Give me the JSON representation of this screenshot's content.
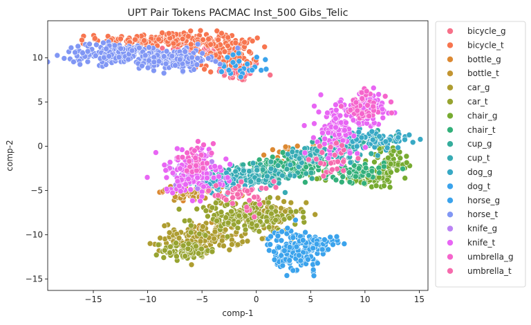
{
  "chart_data": {
    "type": "scatter",
    "title": "UPT Pair Tokens PACMAC Inst_500 Gibs_Telic",
    "xlabel": "comp-1",
    "ylabel": "comp-2",
    "xlim": [
      -19.2,
      15.8
    ],
    "ylim": [
      -16.3,
      14.2
    ],
    "xticks": [
      -15,
      -10,
      -5,
      0,
      5,
      10,
      15
    ],
    "yticks": [
      -15,
      -10,
      -5,
      0,
      5,
      10
    ],
    "grid": false,
    "legend_position": "outside-right",
    "series": [
      {
        "name": "bicycle_g",
        "color": "#f77189",
        "clusters": [
          {
            "x": -1.5,
            "y": 8.5,
            "sx": 1.0,
            "sy": 0.6,
            "n": 60
          },
          {
            "x": -5.0,
            "y": 11.3,
            "sx": 2.0,
            "sy": 0.5,
            "n": 40
          }
        ]
      },
      {
        "name": "bicycle_t",
        "color": "#f7754f",
        "clusters": [
          {
            "x": -8.0,
            "y": 12.0,
            "sx": 3.2,
            "sy": 0.45,
            "n": 200
          },
          {
            "x": -3.0,
            "y": 10.5,
            "sx": 1.6,
            "sy": 0.9,
            "n": 100
          }
        ]
      },
      {
        "name": "bottle_g",
        "color": "#dc8932",
        "clusters": [
          {
            "x": -5.5,
            "y": -5.0,
            "sx": 1.5,
            "sy": 0.5,
            "n": 30
          },
          {
            "x": 3.5,
            "y": -0.7,
            "sx": 1.2,
            "sy": 0.4,
            "n": 20
          }
        ]
      },
      {
        "name": "bottle_t",
        "color": "#c39532",
        "clusters": [
          {
            "x": -6.0,
            "y": -5.3,
            "sx": 1.5,
            "sy": 0.5,
            "n": 30
          },
          {
            "x": -4.0,
            "y": -9.8,
            "sx": 1.2,
            "sy": 0.6,
            "n": 20
          }
        ]
      },
      {
        "name": "car_g",
        "color": "#ae9d31",
        "clusters": [
          {
            "x": -5.0,
            "y": -10.3,
            "sx": 1.9,
            "sy": 0.8,
            "n": 140
          },
          {
            "x": 0.5,
            "y": -7.8,
            "sx": 2.0,
            "sy": 0.9,
            "n": 90
          }
        ]
      },
      {
        "name": "car_t",
        "color": "#97a431",
        "clusters": [
          {
            "x": -1.0,
            "y": -8.0,
            "sx": 2.4,
            "sy": 0.9,
            "n": 150
          },
          {
            "x": -6.5,
            "y": -11.8,
            "sx": 1.1,
            "sy": 0.5,
            "n": 80
          }
        ]
      },
      {
        "name": "chair_g",
        "color": "#77ab31",
        "clusters": [
          {
            "x": 10.0,
            "y": -3.5,
            "sx": 1.6,
            "sy": 0.6,
            "n": 90
          },
          {
            "x": 12.5,
            "y": -1.5,
            "sx": 1.0,
            "sy": 0.8,
            "n": 50
          }
        ]
      },
      {
        "name": "chair_t",
        "color": "#33b07a",
        "clusters": [
          {
            "x": 3.5,
            "y": -2.0,
            "sx": 1.8,
            "sy": 0.6,
            "n": 110
          },
          {
            "x": 9.0,
            "y": -2.8,
            "sx": 1.4,
            "sy": 0.6,
            "n": 60
          }
        ]
      },
      {
        "name": "cup_g",
        "color": "#35ad9c",
        "clusters": [
          {
            "x": 9.0,
            "y": 0.5,
            "sx": 2.0,
            "sy": 0.5,
            "n": 70
          },
          {
            "x": 1.0,
            "y": -3.0,
            "sx": 1.8,
            "sy": 0.5,
            "n": 60
          }
        ]
      },
      {
        "name": "cup_t",
        "color": "#37abb4",
        "clusters": [
          {
            "x": -1.5,
            "y": -3.5,
            "sx": 2.0,
            "sy": 0.6,
            "n": 130
          },
          {
            "x": 6.0,
            "y": -1.0,
            "sx": 1.8,
            "sy": 0.5,
            "n": 90
          }
        ]
      },
      {
        "name": "dog_g",
        "color": "#38a9c5",
        "clusters": [
          {
            "x": 11.0,
            "y": 0.8,
            "sx": 1.6,
            "sy": 0.5,
            "n": 70
          },
          {
            "x": -3.5,
            "y": -4.2,
            "sx": 1.2,
            "sy": 0.5,
            "n": 40
          }
        ]
      },
      {
        "name": "dog_t",
        "color": "#3ba3ec",
        "clusters": [
          {
            "x": 3.5,
            "y": -11.5,
            "sx": 1.2,
            "sy": 1.1,
            "n": 90
          },
          {
            "x": -1.5,
            "y": 9.0,
            "sx": 1.5,
            "sy": 1.0,
            "n": 25
          }
        ]
      },
      {
        "name": "horse_g",
        "color": "#3ba3ec",
        "clusters": [
          {
            "x": 4.0,
            "y": -12.0,
            "sx": 1.0,
            "sy": 1.0,
            "n": 120
          },
          {
            "x": 6.0,
            "y": -10.8,
            "sx": 0.9,
            "sy": 0.3,
            "n": 30
          }
        ]
      },
      {
        "name": "horse_t",
        "color": "#8197f4",
        "clusters": [
          {
            "x": -12.5,
            "y": 10.5,
            "sx": 2.5,
            "sy": 0.55,
            "n": 200
          },
          {
            "x": -7.5,
            "y": 9.8,
            "sx": 1.6,
            "sy": 0.6,
            "n": 130
          }
        ]
      },
      {
        "name": "knife_g",
        "color": "#bb83f4",
        "clusters": [
          {
            "x": -6.0,
            "y": -3.5,
            "sx": 1.4,
            "sy": 0.8,
            "n": 40
          }
        ]
      },
      {
        "name": "knife_t",
        "color": "#e866f4",
        "clusters": [
          {
            "x": 7.5,
            "y": 2.0,
            "sx": 1.0,
            "sy": 1.6,
            "n": 120
          },
          {
            "x": -6.0,
            "y": -3.0,
            "sx": 1.6,
            "sy": 1.3,
            "n": 120
          },
          {
            "x": 10.5,
            "y": 4.3,
            "sx": 1.0,
            "sy": 0.9,
            "n": 80
          }
        ]
      },
      {
        "name": "umbrella_g",
        "color": "#f565cc",
        "clusters": [
          {
            "x": 10.0,
            "y": 4.5,
            "sx": 1.0,
            "sy": 1.0,
            "n": 50
          },
          {
            "x": -5.5,
            "y": -1.5,
            "sx": 0.8,
            "sy": 0.8,
            "n": 30
          }
        ]
      },
      {
        "name": "umbrella_t",
        "color": "#f66bad",
        "clusters": [
          {
            "x": -1.5,
            "y": -5.5,
            "sx": 1.5,
            "sy": 0.8,
            "n": 40
          },
          {
            "x": 7.0,
            "y": -1.5,
            "sx": 1.0,
            "sy": 0.7,
            "n": 25
          }
        ]
      }
    ]
  }
}
